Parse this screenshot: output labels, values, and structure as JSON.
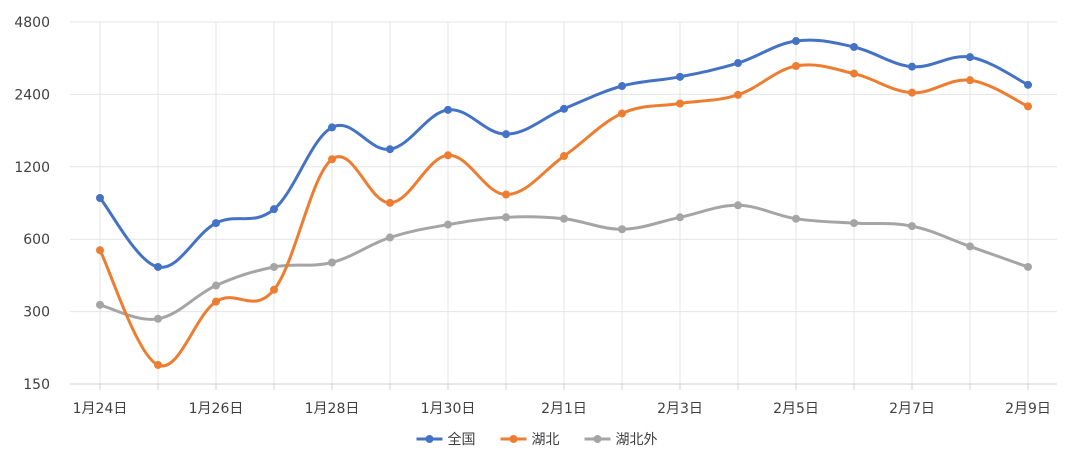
{
  "chart_data": {
    "type": "line",
    "y_scale": "log2",
    "ylim": [
      150,
      4800
    ],
    "y_ticks": [
      150,
      300,
      600,
      1200,
      2400,
      4800
    ],
    "x": [
      "1月24日",
      "1月25日",
      "1月26日",
      "1月27日",
      "1月28日",
      "1月29日",
      "1月30日",
      "1月31日",
      "2月1日",
      "2月2日",
      "2月3日",
      "2月4日",
      "2月5日",
      "2月6日",
      "2月7日",
      "2月8日",
      "2月9日"
    ],
    "x_tick_labels": [
      "1月24日",
      "1月26日",
      "1月28日",
      "1月30日",
      "2月1日",
      "2月3日",
      "2月5日",
      "2月7日",
      "2月9日"
    ],
    "grid": "both",
    "legend_position": "bottom",
    "series": [
      {
        "name": "全国",
        "color": "#4472C4",
        "values": [
          890,
          460,
          700,
          800,
          1750,
          1420,
          2070,
          1640,
          2090,
          2600,
          2840,
          3240,
          4000,
          3780,
          3130,
          3430,
          2630
        ]
      },
      {
        "name": "湖北",
        "color": "#ED7D31",
        "values": [
          540,
          180,
          330,
          370,
          1290,
          850,
          1340,
          920,
          1330,
          2000,
          2200,
          2390,
          3150,
          2930,
          2440,
          2750,
          2140
        ]
      },
      {
        "name": "湖北外",
        "color": "#A5A5A5",
        "values": [
          320,
          280,
          385,
          460,
          480,
          610,
          690,
          740,
          730,
          660,
          740,
          830,
          730,
          700,
          680,
          560,
          460
        ]
      }
    ]
  }
}
